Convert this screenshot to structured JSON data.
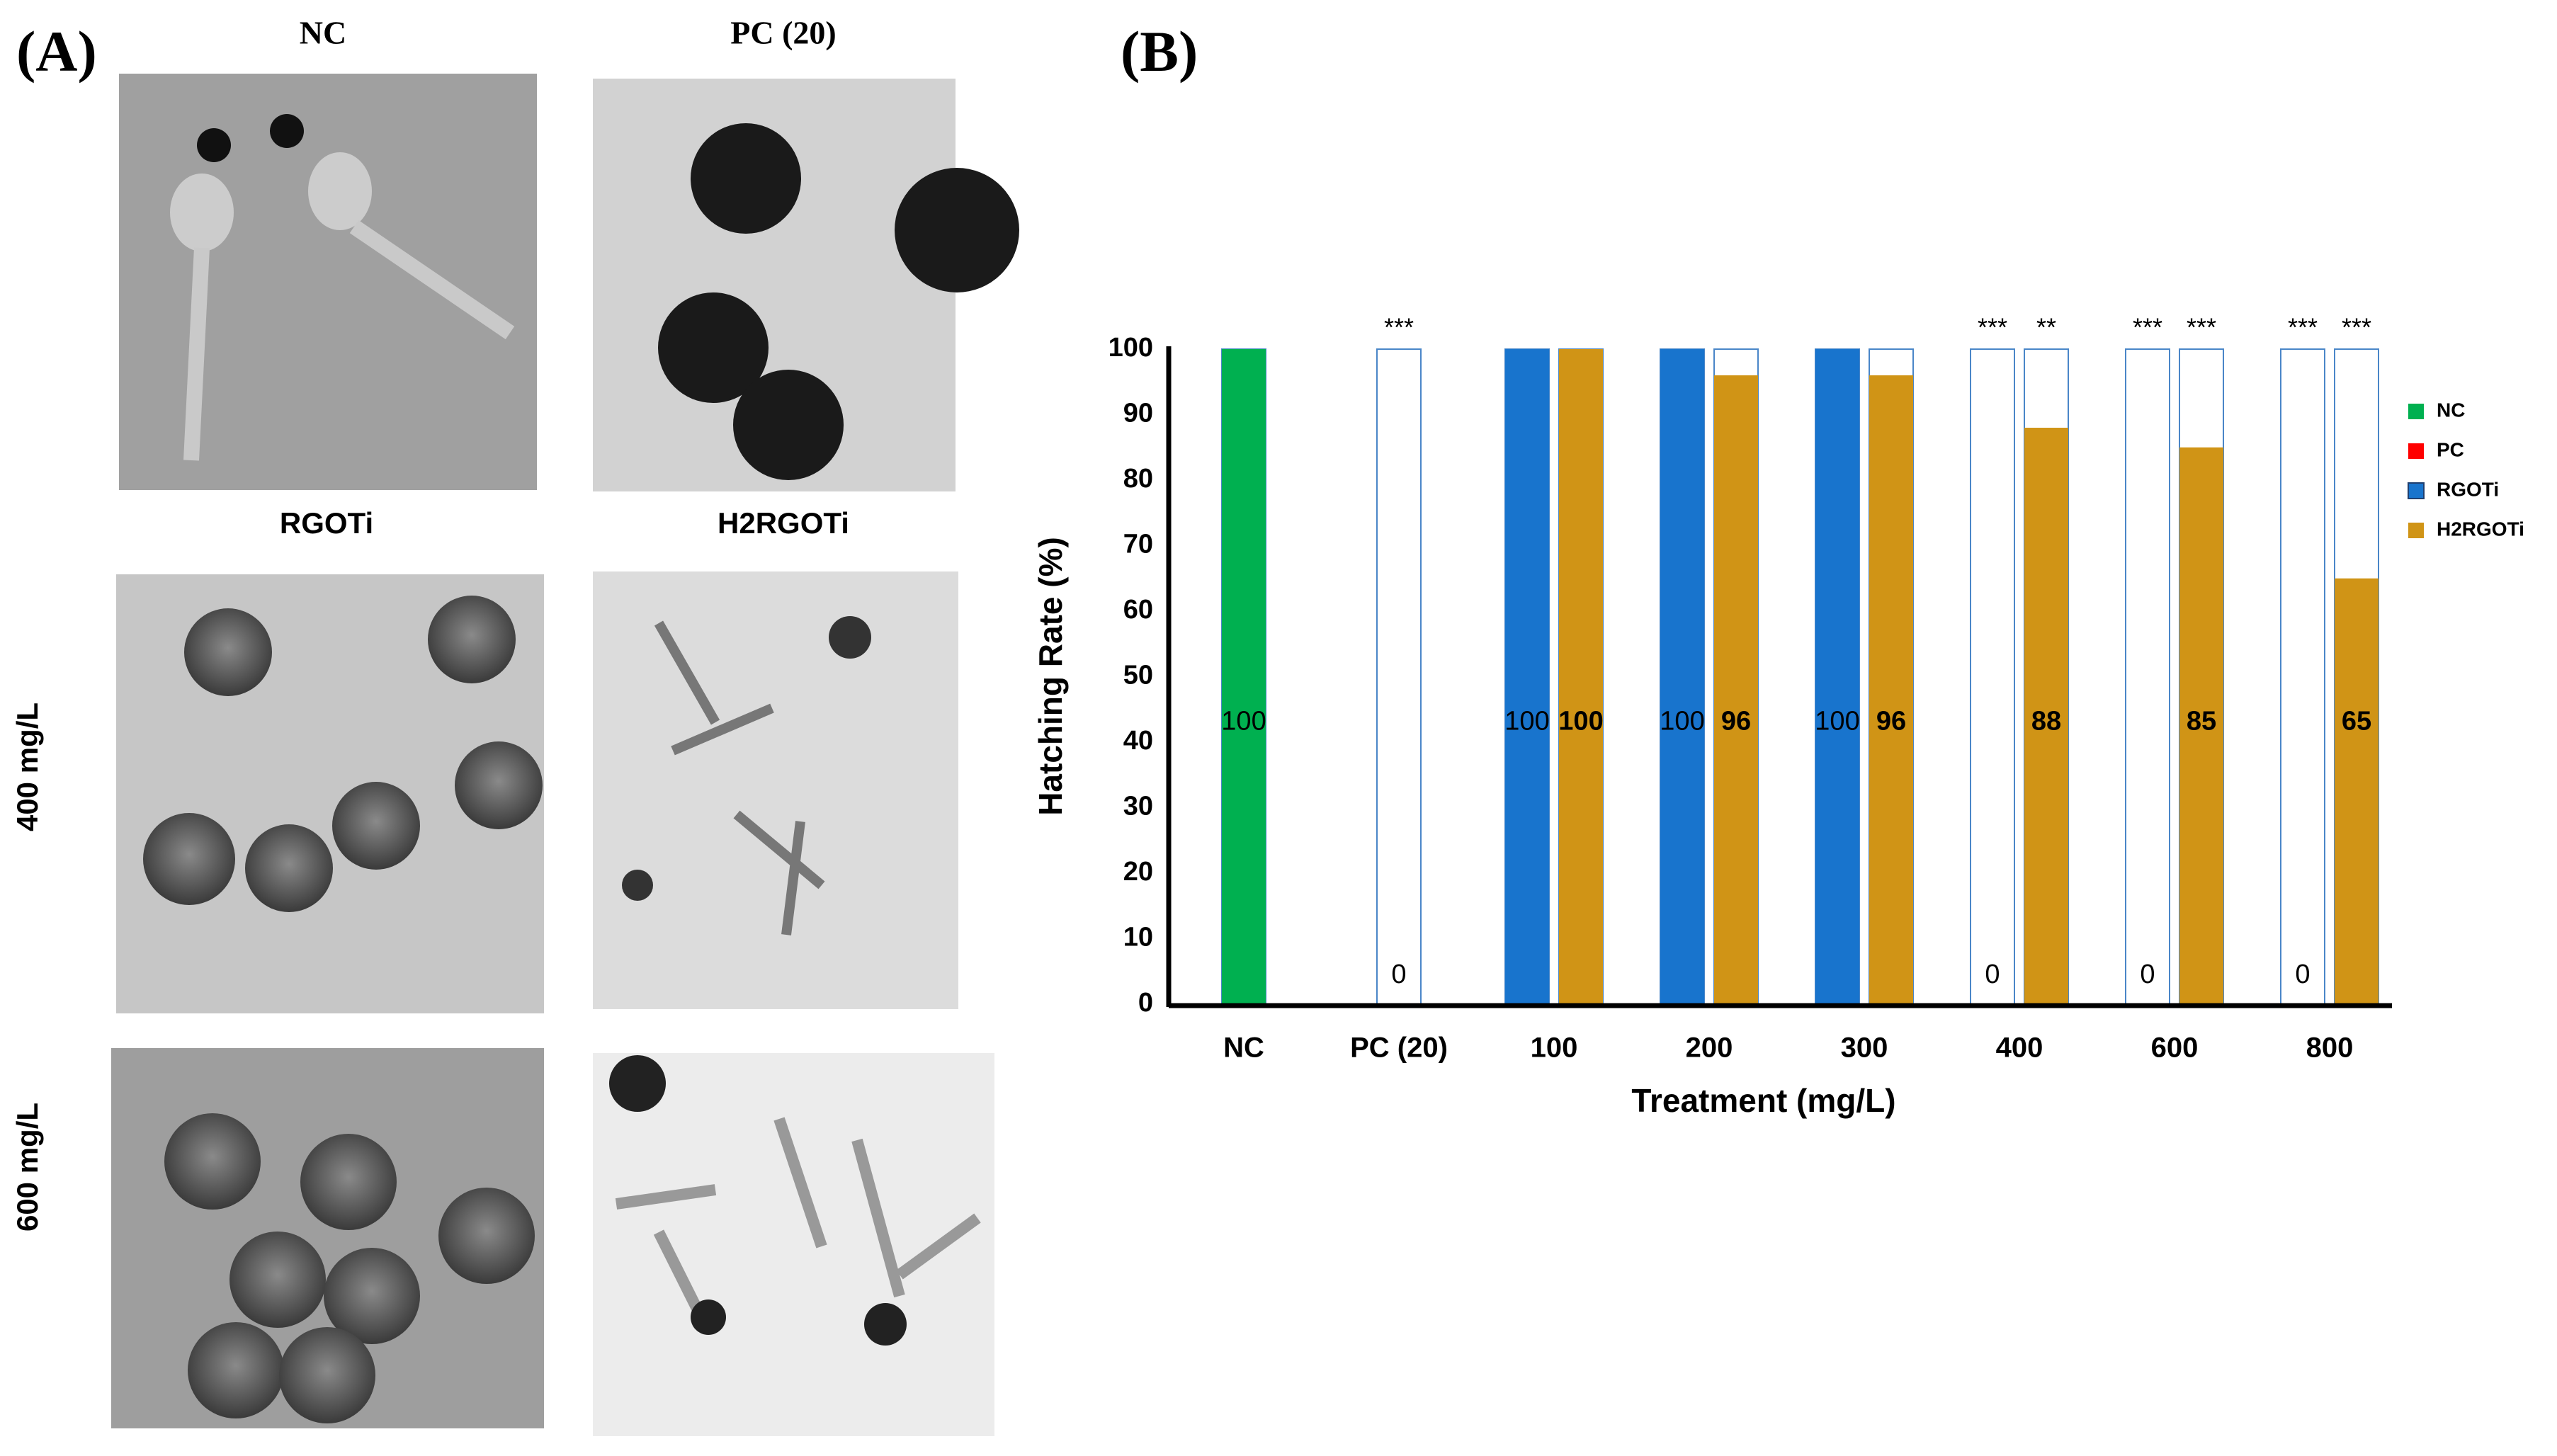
{
  "panel_a": {
    "label": "(A)",
    "top_titles": [
      "NC",
      "PC (20)"
    ],
    "column_titles": [
      "RGOTi",
      "H2RGOTi"
    ],
    "row_labels": [
      "400 mg/L",
      "600 mg/L"
    ]
  },
  "chart_data": {
    "type": "bar",
    "panel_label": "(B)",
    "x_label": "Treatment (mg/L)",
    "y_label": "Hatching Rate (%)",
    "categories": [
      "NC",
      "PC (20)",
      "100",
      "200",
      "300",
      "400",
      "600",
      "800"
    ],
    "series": [
      {
        "name": "NC",
        "color": "#00b050",
        "values": [
          100,
          null,
          null,
          null,
          null,
          null,
          null,
          null
        ],
        "significance": [
          null,
          null,
          null,
          null,
          null,
          null,
          null,
          null
        ]
      },
      {
        "name": "PC",
        "color": "#ff0000",
        "values": [
          null,
          0,
          null,
          null,
          null,
          null,
          null,
          null
        ],
        "significance": [
          null,
          "***",
          null,
          null,
          null,
          null,
          null,
          null
        ]
      },
      {
        "name": "RGOTi",
        "color": "#1874cd",
        "values": [
          null,
          null,
          100,
          100,
          100,
          0,
          0,
          0
        ],
        "significance": [
          null,
          null,
          null,
          null,
          null,
          "***",
          "***",
          "***"
        ]
      },
      {
        "name": "H2RGOTi",
        "color": "#d09416",
        "values": [
          null,
          null,
          100,
          96,
          96,
          88,
          85,
          65
        ],
        "significance": [
          null,
          null,
          null,
          null,
          null,
          "**",
          "***",
          "***"
        ]
      }
    ],
    "ylim": [
      0,
      100
    ],
    "yticks": [
      0,
      10,
      20,
      30,
      40,
      50,
      60,
      70,
      80,
      90,
      100
    ],
    "grid": false,
    "legend": "right"
  }
}
